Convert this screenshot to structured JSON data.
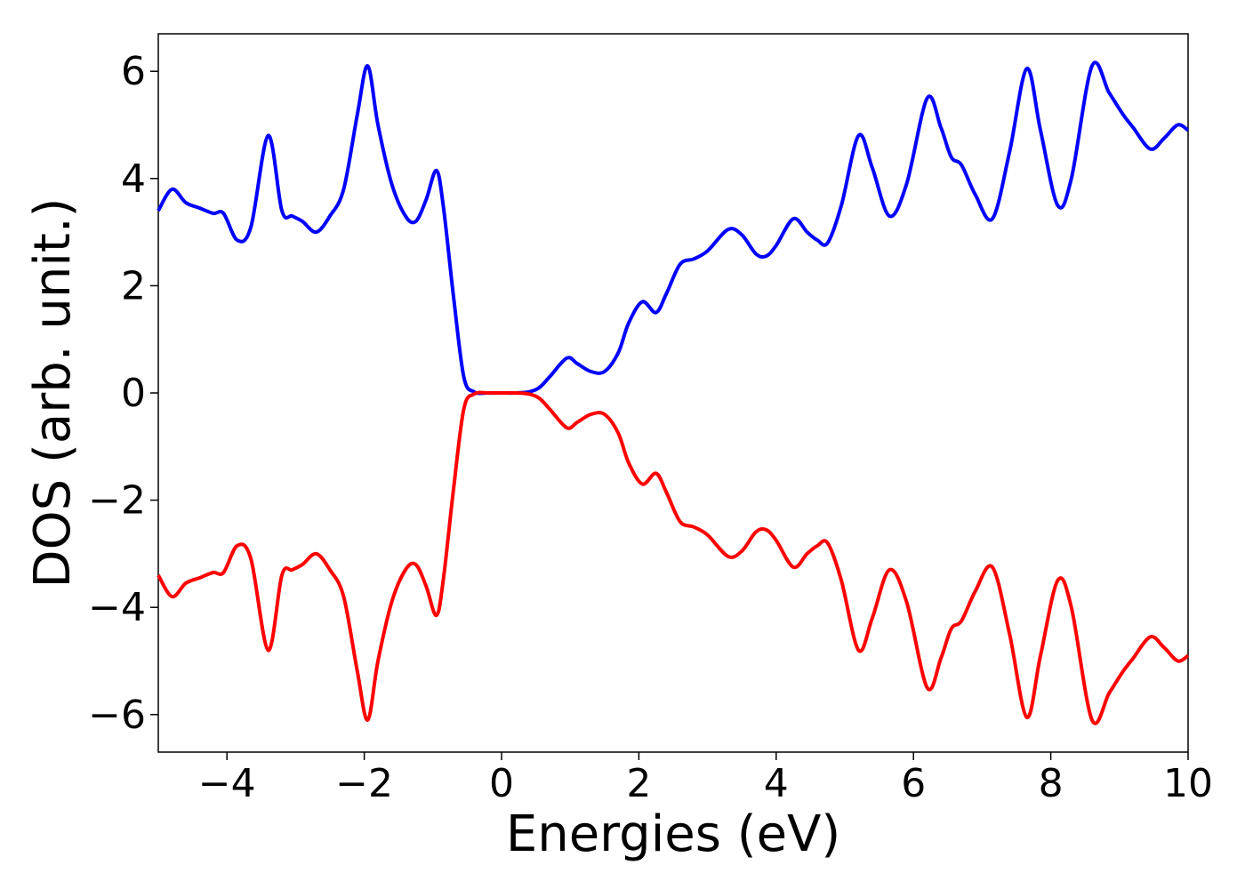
{
  "chart_data": {
    "type": "line",
    "title": "",
    "xlabel": "Energies (eV)",
    "ylabel": "DOS (arb. unit.)",
    "xlim": [
      -5,
      10
    ],
    "ylim": [
      -6.7,
      6.7
    ],
    "xticks": [
      -4,
      -2,
      0,
      2,
      4,
      6,
      8,
      10
    ],
    "xtick_labels": [
      "−4",
      "−2",
      "0",
      "2",
      "4",
      "6",
      "8",
      "10"
    ],
    "yticks": [
      -6,
      -4,
      -2,
      0,
      2,
      4,
      6
    ],
    "ytick_labels": [
      "−6",
      "−4",
      "−2",
      "0",
      "2",
      "4",
      "6"
    ],
    "grid": false,
    "legend": "none",
    "series": [
      {
        "color": "#0000ff",
        "x": [
          -5.0,
          -4.8,
          -4.6,
          -4.4,
          -4.2,
          -4.05,
          -3.85,
          -3.65,
          -3.4,
          -3.2,
          -3.05,
          -2.9,
          -2.7,
          -2.5,
          -2.3,
          -2.1,
          -1.95,
          -1.8,
          -1.6,
          -1.4,
          -1.25,
          -1.1,
          -0.95,
          -0.85,
          -0.7,
          -0.55,
          -0.4,
          -0.2,
          0.0,
          0.2,
          0.4,
          0.55,
          0.7,
          0.95,
          1.1,
          1.3,
          1.5,
          1.7,
          1.85,
          2.05,
          2.25,
          2.4,
          2.6,
          2.8,
          3.0,
          3.3,
          3.5,
          3.7,
          3.85,
          4.0,
          4.25,
          4.45,
          4.6,
          4.75,
          4.95,
          5.2,
          5.4,
          5.65,
          5.9,
          6.2,
          6.4,
          6.55,
          6.7,
          6.9,
          7.15,
          7.4,
          7.65,
          7.85,
          8.1,
          8.3,
          8.6,
          8.85,
          9.05,
          9.2,
          9.45,
          9.65,
          9.85,
          10.0
        ],
        "y": [
          3.4,
          3.8,
          3.55,
          3.45,
          3.35,
          3.35,
          2.85,
          3.1,
          4.8,
          3.4,
          3.3,
          3.2,
          3.0,
          3.3,
          3.8,
          5.2,
          6.1,
          5.0,
          3.9,
          3.3,
          3.2,
          3.6,
          4.15,
          3.5,
          1.8,
          0.3,
          0.02,
          0.0,
          0.0,
          0.0,
          0.02,
          0.1,
          0.3,
          0.65,
          0.55,
          0.4,
          0.4,
          0.75,
          1.3,
          1.7,
          1.5,
          1.85,
          2.4,
          2.5,
          2.65,
          3.05,
          2.95,
          2.6,
          2.55,
          2.75,
          3.25,
          3.0,
          2.85,
          2.8,
          3.5,
          4.8,
          4.2,
          3.3,
          3.9,
          5.5,
          4.95,
          4.4,
          4.25,
          3.7,
          3.25,
          4.5,
          6.05,
          4.9,
          3.5,
          4.0,
          6.1,
          5.6,
          5.2,
          4.95,
          4.55,
          4.75,
          5.0,
          4.9
        ]
      },
      {
        "color": "#ff0000",
        "x": [
          -5.0,
          -4.8,
          -4.6,
          -4.4,
          -4.2,
          -4.05,
          -3.85,
          -3.65,
          -3.4,
          -3.2,
          -3.05,
          -2.9,
          -2.7,
          -2.5,
          -2.3,
          -2.1,
          -1.95,
          -1.8,
          -1.6,
          -1.4,
          -1.25,
          -1.1,
          -0.95,
          -0.85,
          -0.7,
          -0.55,
          -0.4,
          -0.2,
          0.0,
          0.2,
          0.4,
          0.55,
          0.7,
          0.95,
          1.1,
          1.3,
          1.5,
          1.7,
          1.85,
          2.05,
          2.25,
          2.4,
          2.6,
          2.8,
          3.0,
          3.3,
          3.5,
          3.7,
          3.85,
          4.0,
          4.25,
          4.45,
          4.6,
          4.75,
          4.95,
          5.2,
          5.4,
          5.65,
          5.9,
          6.2,
          6.4,
          6.55,
          6.7,
          6.9,
          7.15,
          7.4,
          7.65,
          7.85,
          8.1,
          8.3,
          8.6,
          8.85,
          9.05,
          9.2,
          9.45,
          9.65,
          9.85,
          10.0
        ],
        "y": [
          -3.4,
          -3.8,
          -3.55,
          -3.45,
          -3.35,
          -3.35,
          -2.85,
          -3.1,
          -4.8,
          -3.4,
          -3.3,
          -3.2,
          -3.0,
          -3.3,
          -3.8,
          -5.2,
          -6.1,
          -5.0,
          -3.9,
          -3.3,
          -3.2,
          -3.6,
          -4.15,
          -3.5,
          -1.8,
          -0.3,
          -0.02,
          0.0,
          0.0,
          0.0,
          -0.02,
          -0.1,
          -0.3,
          -0.65,
          -0.55,
          -0.4,
          -0.4,
          -0.75,
          -1.3,
          -1.7,
          -1.5,
          -1.85,
          -2.4,
          -2.5,
          -2.65,
          -3.05,
          -2.95,
          -2.6,
          -2.55,
          -2.75,
          -3.25,
          -3.0,
          -2.85,
          -2.8,
          -3.5,
          -4.8,
          -4.2,
          -3.3,
          -3.9,
          -5.5,
          -4.95,
          -4.4,
          -4.25,
          -3.7,
          -3.25,
          -4.5,
          -6.05,
          -4.9,
          -3.5,
          -4.0,
          -6.1,
          -5.6,
          -5.2,
          -4.95,
          -4.55,
          -4.75,
          -5.0,
          -4.9
        ]
      }
    ]
  }
}
